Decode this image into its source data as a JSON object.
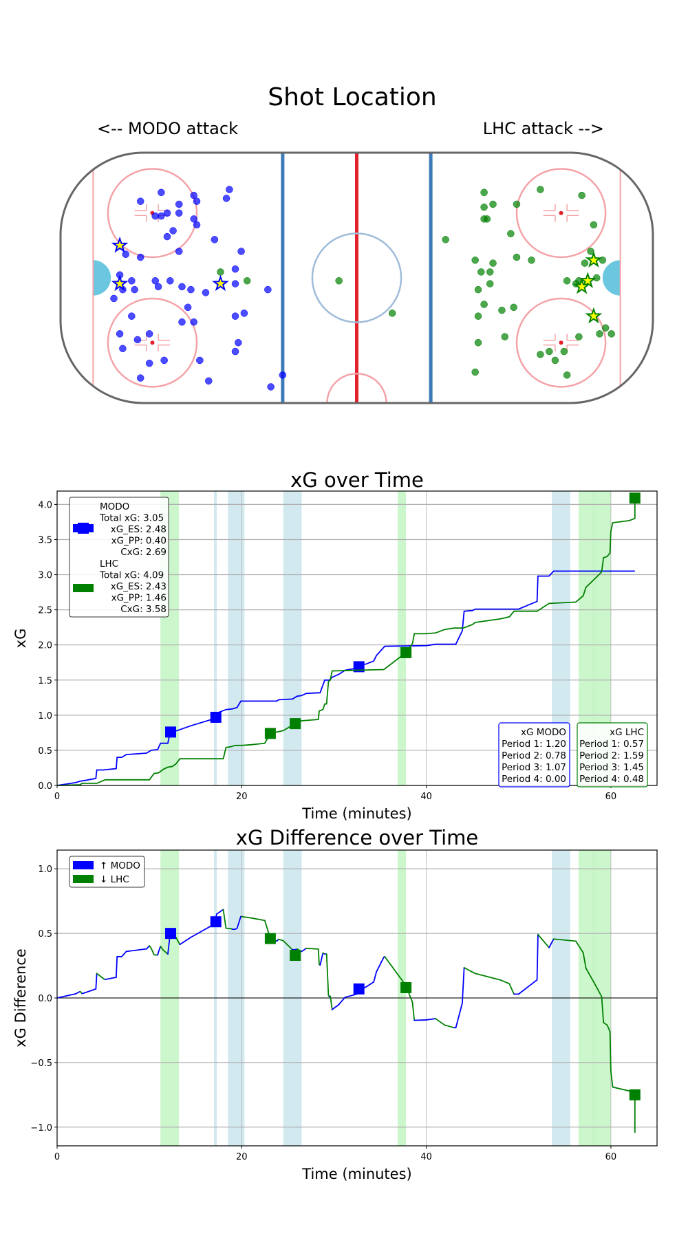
{
  "colors": {
    "modo": "#0000ff",
    "lhc": "#008000",
    "pp_green": "#c6f5c6",
    "pp_blue": "#d3e9f0",
    "grid": "#b0b0b0"
  },
  "shot_map": {
    "title": "Shot Location",
    "left_label": "<-- MODO attack",
    "right_label": "LHC attack -->",
    "modo_shots": [
      [
        -66,
        29
      ],
      [
        -55,
        28
      ],
      [
        -43,
        30
      ],
      [
        -73,
        26
      ],
      [
        -60,
        25
      ],
      [
        -54,
        26
      ],
      [
        -44,
        27
      ],
      [
        -66,
        21
      ],
      [
        -64,
        22
      ],
      [
        -60,
        22
      ],
      [
        -68,
        21
      ],
      [
        -55,
        20
      ],
      [
        -54,
        18
      ],
      [
        -62,
        16
      ],
      [
        -64,
        14
      ],
      [
        -48,
        13
      ],
      [
        -60,
        9
      ],
      [
        -39,
        9
      ],
      [
        -78,
        8
      ],
      [
        -73,
        7
      ],
      [
        -41,
        3
      ],
      [
        -80,
        1
      ],
      [
        -76,
        -1
      ],
      [
        -68,
        -1
      ],
      [
        -63,
        -1
      ],
      [
        -67,
        -3
      ],
      [
        -59,
        -3
      ],
      [
        -56,
        -4
      ],
      [
        -75,
        -4
      ],
      [
        -79,
        -4
      ],
      [
        -82,
        -7
      ],
      [
        -51,
        -5
      ],
      [
        -41,
        -2
      ],
      [
        -30,
        -4
      ],
      [
        -57,
        -10
      ],
      [
        -76,
        -13
      ],
      [
        -59,
        -15
      ],
      [
        -55,
        -15
      ],
      [
        -41,
        -13
      ],
      [
        -38,
        -12
      ],
      [
        -70,
        -19
      ],
      [
        -80,
        -19
      ],
      [
        -74,
        -21
      ],
      [
        -79,
        -24
      ],
      [
        -40,
        -22
      ],
      [
        -41,
        -25
      ],
      [
        -65,
        -28
      ],
      [
        -70,
        -29
      ],
      [
        -53,
        -28
      ],
      [
        -73,
        -34
      ],
      [
        -50,
        -35
      ],
      [
        -25,
        -33
      ],
      [
        -29,
        -37
      ]
    ],
    "modo_goals": [
      [
        -80,
        11
      ],
      [
        -80,
        -2
      ],
      [
        -46,
        -2
      ]
    ],
    "lhc_shots": [
      [
        43,
        29
      ],
      [
        62,
        30
      ],
      [
        76,
        28
      ],
      [
        43,
        24
      ],
      [
        46,
        25
      ],
      [
        54,
        25
      ],
      [
        43,
        20
      ],
      [
        44,
        20
      ],
      [
        80,
        18
      ],
      [
        52,
        15
      ],
      [
        30,
        13
      ],
      [
        40,
        6
      ],
      [
        46,
        5
      ],
      [
        54,
        7
      ],
      [
        59,
        6
      ],
      [
        79,
        9
      ],
      [
        83,
        6
      ],
      [
        77,
        5
      ],
      [
        45,
        2
      ],
      [
        42,
        2
      ],
      [
        -46,
        2
      ],
      [
        -37,
        -1
      ],
      [
        -6,
        -1
      ],
      [
        71,
        -1
      ],
      [
        74,
        -2
      ],
      [
        75,
        -1
      ],
      [
        81,
        0
      ],
      [
        45,
        -2
      ],
      [
        41,
        -4
      ],
      [
        43,
        -9
      ],
      [
        49,
        -11
      ],
      [
        53,
        -10
      ],
      [
        12,
        -12
      ],
      [
        41,
        -13
      ],
      [
        75,
        -20
      ],
      [
        82,
        -19
      ],
      [
        84,
        -17
      ],
      [
        86,
        -19
      ],
      [
        50,
        -20
      ],
      [
        41,
        -22
      ],
      [
        62,
        -26
      ],
      [
        65,
        -25
      ],
      [
        70,
        -25
      ],
      [
        67,
        -28
      ],
      [
        40,
        -32
      ],
      [
        71,
        -33
      ]
    ],
    "lhc_goals": [
      [
        80,
        6
      ],
      [
        78,
        -1
      ],
      [
        76,
        -3
      ],
      [
        80,
        -13
      ]
    ]
  },
  "chart_data": [
    {
      "type": "line",
      "title": "xG over Time",
      "xlabel": "Time (minutes)",
      "ylabel": "xG",
      "xlim": [
        0,
        65
      ],
      "ylim": [
        0,
        4.19
      ],
      "xticks": [
        "0",
        "20",
        "40",
        "60"
      ],
      "xtick_values": [
        0,
        20,
        40,
        60
      ],
      "yticks": [
        "0.0",
        "0.5",
        "1.0",
        "1.5",
        "2.0",
        "2.5",
        "3.0",
        "3.5",
        "4.0"
      ],
      "ytick_values": [
        0,
        0.5,
        1,
        1.5,
        2,
        2.5,
        3,
        3.5,
        4
      ],
      "grid": true,
      "pp_regions": [
        {
          "team": "LHC",
          "range": [
            11.2,
            13.2
          ]
        },
        {
          "team": "MODO",
          "range": [
            17.0,
            17.3
          ]
        },
        {
          "team": "MODO",
          "range": [
            18.5,
            20.3
          ]
        },
        {
          "team": "MODO",
          "range": [
            24.5,
            26.5
          ]
        },
        {
          "team": "LHC",
          "range": [
            36.9,
            37.8
          ]
        },
        {
          "team": "MODO",
          "range": [
            53.6,
            55.6
          ]
        },
        {
          "team": "LHC",
          "range": [
            56.5,
            60.0
          ]
        },
        {
          "team": "LHC",
          "range": [
            58.0,
            58.4
          ]
        }
      ],
      "series": [
        {
          "name": "MODO",
          "points": [
            [
              0,
              0
            ],
            [
              1,
              0.02
            ],
            [
              2,
              0.04
            ],
            [
              2.5,
              0.06
            ],
            [
              3,
              0.07
            ],
            [
              4.2,
              0.1
            ],
            [
              4.3,
              0.22
            ],
            [
              5,
              0.22
            ],
            [
              6.4,
              0.24
            ],
            [
              6.5,
              0.4
            ],
            [
              7,
              0.4
            ],
            [
              7.5,
              0.44
            ],
            [
              9.7,
              0.46
            ],
            [
              10.2,
              0.5
            ],
            [
              10.9,
              0.51
            ],
            [
              11.2,
              0.6
            ],
            [
              12,
              0.6
            ],
            [
              12.2,
              0.73
            ],
            [
              12.3,
              0.76
            ],
            [
              13,
              0.78
            ],
            [
              14.5,
              0.85
            ],
            [
              17,
              0.95
            ],
            [
              17.3,
              1.03
            ],
            [
              18.3,
              1.08
            ],
            [
              19,
              1.09
            ],
            [
              19.5,
              1.11
            ],
            [
              19.9,
              1.2
            ],
            [
              23.8,
              1.2
            ],
            [
              24,
              1.22
            ],
            [
              25.5,
              1.23
            ],
            [
              26,
              1.27
            ],
            [
              26.5,
              1.28
            ],
            [
              27,
              1.31
            ],
            [
              28.5,
              1.32
            ],
            [
              29,
              1.5
            ],
            [
              29.5,
              1.5
            ],
            [
              29.8,
              1.54
            ],
            [
              30.5,
              1.58
            ],
            [
              31.2,
              1.64
            ],
            [
              32.5,
              1.67
            ],
            [
              33,
              1.71
            ],
            [
              33.5,
              1.73
            ],
            [
              33.9,
              1.75
            ],
            [
              34.3,
              1.77
            ],
            [
              34.6,
              1.85
            ],
            [
              35.5,
              1.98
            ],
            [
              40,
              1.99
            ],
            [
              41,
              2.01
            ],
            [
              43.2,
              2.01
            ],
            [
              43.9,
              2.2
            ],
            [
              44.1,
              2.48
            ],
            [
              45,
              2.49
            ],
            [
              45.3,
              2.51
            ],
            [
              50,
              2.51
            ],
            [
              52,
              2.62
            ],
            [
              52.1,
              2.98
            ],
            [
              53.3,
              2.98
            ],
            [
              53.8,
              3.05
            ],
            [
              62.6,
              3.05
            ]
          ],
          "goals": [
            [
              12.3,
              0.76
            ],
            [
              17.2,
              0.97
            ],
            [
              32.7,
              1.69
            ]
          ]
        },
        {
          "name": "LHC",
          "points": [
            [
              0,
              0
            ],
            [
              2.5,
              0.01
            ],
            [
              2.7,
              0.03
            ],
            [
              4.3,
              0.03
            ],
            [
              5.2,
              0.08
            ],
            [
              10,
              0.08
            ],
            [
              10.5,
              0.17
            ],
            [
              11,
              0.18
            ],
            [
              11.5,
              0.23
            ],
            [
              12,
              0.26
            ],
            [
              12.5,
              0.27
            ],
            [
              12.9,
              0.31
            ],
            [
              13.3,
              0.38
            ],
            [
              18,
              0.38
            ],
            [
              18.3,
              0.54
            ],
            [
              18.8,
              0.55
            ],
            [
              19.3,
              0.57
            ],
            [
              20,
              0.57
            ],
            [
              21,
              0.58
            ],
            [
              22.5,
              0.6
            ],
            [
              23.1,
              0.74
            ],
            [
              24.5,
              0.78
            ],
            [
              25.8,
              0.88
            ],
            [
              26.5,
              0.92
            ],
            [
              28.3,
              0.94
            ],
            [
              28.4,
              1.06
            ],
            [
              28.8,
              1.08
            ],
            [
              29,
              1.16
            ],
            [
              29.2,
              1.16
            ],
            [
              29.4,
              1.48
            ],
            [
              29.6,
              1.5
            ],
            [
              29.8,
              1.63
            ],
            [
              35.4,
              1.65
            ],
            [
              37.8,
              1.89
            ],
            [
              38.5,
              2.02
            ],
            [
              38.7,
              2.16
            ],
            [
              40,
              2.16
            ],
            [
              41,
              2.17
            ],
            [
              42,
              2.22
            ],
            [
              43,
              2.24
            ],
            [
              44,
              2.24
            ],
            [
              45,
              2.29
            ],
            [
              45.3,
              2.32
            ],
            [
              48,
              2.37
            ],
            [
              49,
              2.4
            ],
            [
              49.5,
              2.48
            ],
            [
              52,
              2.48
            ],
            [
              53.3,
              2.59
            ],
            [
              56.2,
              2.61
            ],
            [
              57,
              2.7
            ],
            [
              57.3,
              2.82
            ],
            [
              58.4,
              2.96
            ],
            [
              59,
              3.04
            ],
            [
              59.2,
              3.24
            ],
            [
              59.6,
              3.26
            ],
            [
              59.9,
              3.31
            ],
            [
              60,
              3.62
            ],
            [
              60.2,
              3.74
            ],
            [
              62,
              3.77
            ],
            [
              62.6,
              3.8
            ],
            [
              62.6,
              4.09
            ]
          ],
          "goals": [
            [
              23.1,
              0.74
            ],
            [
              25.8,
              0.88
            ],
            [
              37.8,
              1.89
            ],
            [
              62.6,
              4.09
            ]
          ]
        }
      ],
      "legend": {
        "placement": "upper-left",
        "modo_lines": [
          "MODO",
          "Total xG: 3.05",
          "xG_ES: 2.48",
          "xG_PP: 0.40",
          "CxG: 2.69"
        ],
        "lhc_lines": [
          "LHC",
          "Total xG: 4.09",
          "xG_ES: 2.43",
          "xG_PP: 1.46",
          "CxG: 3.58"
        ]
      },
      "period_boxes": {
        "placement": "lower-right",
        "modo": [
          "xG MODO",
          "Period 1: 1.20",
          "Period 2: 0.78",
          "Period 3: 1.07",
          "Period 4: 0.00"
        ],
        "lhc": [
          "xG LHC",
          "Period 1: 0.57",
          "Period 2: 1.59",
          "Period 3: 1.45",
          "Period 4: 0.48"
        ]
      }
    },
    {
      "type": "line",
      "title": "xG Difference over Time",
      "xlabel": "Time (minutes)",
      "ylabel": "xG Difference",
      "xlim": [
        0,
        65
      ],
      "ylim": [
        -1.145,
        1.145
      ],
      "xticks": [
        "0",
        "20",
        "40",
        "60"
      ],
      "xtick_values": [
        0,
        20,
        40,
        60
      ],
      "yticks": [
        "−1.0",
        "−0.5",
        "0.0",
        "0.5",
        "1.0"
      ],
      "ytick_values": [
        -1,
        -0.5,
        0,
        0.5,
        1
      ],
      "grid": true,
      "derived_from": "MODO minus LHC cumulative xG",
      "goals": [
        {
          "team": "MODO",
          "x": 12.3,
          "y": 0.5
        },
        {
          "team": "MODO",
          "x": 17.2,
          "y": 0.59
        },
        {
          "team": "LHC",
          "x": 23.1,
          "y": 0.46
        },
        {
          "team": "LHC",
          "x": 25.8,
          "y": 0.33
        },
        {
          "team": "MODO",
          "x": 32.7,
          "y": 0.07
        },
        {
          "team": "LHC",
          "x": 37.8,
          "y": 0.08
        },
        {
          "team": "LHC",
          "x": 62.6,
          "y": -0.75
        }
      ],
      "legend": {
        "placement": "upper-left",
        "items": [
          "↑ MODO",
          "↓ LHC"
        ]
      }
    }
  ]
}
